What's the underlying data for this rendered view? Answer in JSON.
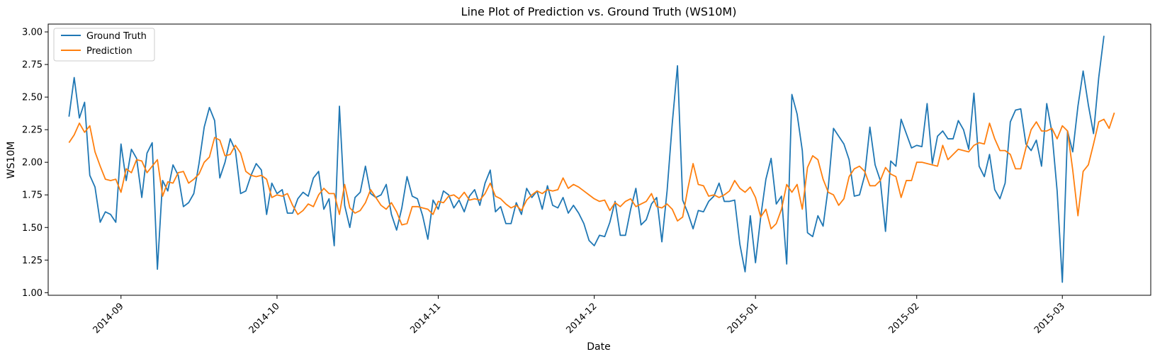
{
  "chart_data": {
    "type": "line",
    "title": "Line Plot of Prediction vs. Ground Truth (WS10M)",
    "xlabel": "Date",
    "ylabel": "WS10M",
    "x_start": "2014-08-22",
    "x_step_days": 1,
    "xlim": [
      "2014-08-18",
      "2015-03-18"
    ],
    "ylim": [
      0.98,
      3.06
    ],
    "x_ticks": [
      "2014-09",
      "2014-10",
      "2014-11",
      "2014-12",
      "2015-01",
      "2015-02",
      "2015-03"
    ],
    "x_tick_dates": [
      "2014-09-01",
      "2014-10-01",
      "2014-11-01",
      "2014-12-01",
      "2015-01-01",
      "2015-02-01",
      "2015-03-01"
    ],
    "y_ticks": [
      1.0,
      1.25,
      1.5,
      1.75,
      2.0,
      2.25,
      2.5,
      2.75,
      3.0
    ],
    "y_tick_labels": [
      "1.00",
      "1.25",
      "1.50",
      "1.75",
      "2.00",
      "2.25",
      "2.50",
      "2.75",
      "3.00"
    ],
    "grid": false,
    "legend": "upper left",
    "series": [
      {
        "name": "Ground Truth",
        "color": "#1f77b4",
        "values": [
          2.35,
          2.65,
          2.34,
          2.46,
          1.9,
          1.81,
          1.54,
          1.62,
          1.6,
          1.54,
          2.14,
          1.86,
          2.1,
          2.03,
          1.73,
          2.07,
          2.15,
          1.18,
          1.86,
          1.78,
          1.98,
          1.9,
          1.66,
          1.69,
          1.76,
          1.99,
          2.27,
          2.42,
          2.32,
          1.88,
          2.0,
          2.18,
          2.09,
          1.76,
          1.78,
          1.9,
          1.99,
          1.94,
          1.6,
          1.84,
          1.76,
          1.79,
          1.61,
          1.61,
          1.72,
          1.77,
          1.74,
          1.88,
          1.93,
          1.64,
          1.72,
          1.36,
          2.43,
          1.67,
          1.5,
          1.73,
          1.77,
          1.97,
          1.76,
          1.73,
          1.75,
          1.83,
          1.6,
          1.48,
          1.65,
          1.89,
          1.74,
          1.72,
          1.59,
          1.41,
          1.71,
          1.64,
          1.78,
          1.75,
          1.65,
          1.71,
          1.62,
          1.74,
          1.79,
          1.67,
          1.84,
          1.94,
          1.62,
          1.66,
          1.53,
          1.53,
          1.69,
          1.6,
          1.8,
          1.73,
          1.78,
          1.64,
          1.82,
          1.67,
          1.65,
          1.73,
          1.61,
          1.67,
          1.61,
          1.53,
          1.4,
          1.36,
          1.44,
          1.43,
          1.54,
          1.7,
          1.44,
          1.44,
          1.64,
          1.8,
          1.52,
          1.56,
          1.68,
          1.73,
          1.39,
          1.78,
          2.3,
          2.74,
          1.71,
          1.61,
          1.49,
          1.63,
          1.62,
          1.7,
          1.74,
          1.84,
          1.7,
          1.7,
          1.71,
          1.37,
          1.16,
          1.59,
          1.23,
          1.58,
          1.87,
          2.03,
          1.68,
          1.74,
          1.22,
          2.52,
          2.37,
          2.09,
          1.46,
          1.43,
          1.59,
          1.51,
          1.81,
          2.26,
          2.2,
          2.14,
          2.02,
          1.74,
          1.75,
          1.9,
          2.27,
          1.98,
          1.86,
          1.47,
          2.01,
          1.97,
          2.33,
          2.22,
          2.11,
          2.13,
          2.12,
          2.45,
          1.99,
          2.2,
          2.24,
          2.18,
          2.18,
          2.32,
          2.25,
          2.1,
          2.53,
          1.97,
          1.89,
          2.06,
          1.79,
          1.72,
          1.84,
          2.31,
          2.4,
          2.41,
          2.14,
          2.09,
          2.17,
          1.97,
          2.45,
          2.23,
          1.78,
          1.08,
          2.24,
          2.08,
          2.43,
          2.7,
          2.44,
          2.22,
          2.65,
          2.97
        ]
      },
      {
        "name": "Prediction",
        "color": "#ff7f0e",
        "values": [
          2.15,
          2.21,
          2.3,
          2.23,
          2.28,
          2.08,
          1.97,
          1.87,
          1.86,
          1.87,
          1.77,
          1.95,
          1.92,
          2.02,
          2.01,
          1.92,
          1.97,
          2.02,
          1.74,
          1.85,
          1.84,
          1.92,
          1.93,
          1.84,
          1.87,
          1.91,
          2.0,
          2.04,
          2.19,
          2.17,
          2.05,
          2.06,
          2.13,
          2.07,
          1.93,
          1.9,
          1.89,
          1.9,
          1.87,
          1.73,
          1.75,
          1.74,
          1.76,
          1.67,
          1.6,
          1.63,
          1.68,
          1.66,
          1.75,
          1.8,
          1.76,
          1.76,
          1.6,
          1.83,
          1.65,
          1.61,
          1.63,
          1.69,
          1.79,
          1.73,
          1.67,
          1.64,
          1.69,
          1.62,
          1.52,
          1.53,
          1.66,
          1.66,
          1.65,
          1.64,
          1.6,
          1.7,
          1.69,
          1.74,
          1.75,
          1.72,
          1.77,
          1.71,
          1.72,
          1.71,
          1.76,
          1.84,
          1.74,
          1.72,
          1.68,
          1.65,
          1.67,
          1.63,
          1.71,
          1.75,
          1.78,
          1.76,
          1.79,
          1.78,
          1.79,
          1.88,
          1.8,
          1.83,
          1.81,
          1.78,
          1.75,
          1.72,
          1.7,
          1.71,
          1.63,
          1.69,
          1.66,
          1.7,
          1.72,
          1.66,
          1.68,
          1.7,
          1.76,
          1.66,
          1.65,
          1.68,
          1.64,
          1.55,
          1.58,
          1.8,
          1.99,
          1.83,
          1.82,
          1.74,
          1.75,
          1.73,
          1.75,
          1.78,
          1.86,
          1.8,
          1.77,
          1.81,
          1.73,
          1.58,
          1.64,
          1.49,
          1.53,
          1.64,
          1.83,
          1.77,
          1.83,
          1.64,
          1.96,
          2.05,
          2.02,
          1.87,
          1.77,
          1.75,
          1.67,
          1.72,
          1.89,
          1.95,
          1.97,
          1.93,
          1.82,
          1.82,
          1.86,
          1.96,
          1.91,
          1.89,
          1.73,
          1.86,
          1.86,
          2.0,
          2.0,
          1.99,
          1.98,
          1.97,
          2.13,
          2.02,
          2.06,
          2.1,
          2.09,
          2.08,
          2.13,
          2.15,
          2.14,
          2.3,
          2.18,
          2.09,
          2.09,
          2.06,
          1.95,
          1.95,
          2.11,
          2.25,
          2.31,
          2.24,
          2.24,
          2.26,
          2.18,
          2.28,
          2.24,
          1.94,
          1.59,
          1.93,
          1.98,
          2.14,
          2.31,
          2.33,
          2.26,
          2.38
        ]
      }
    ]
  }
}
